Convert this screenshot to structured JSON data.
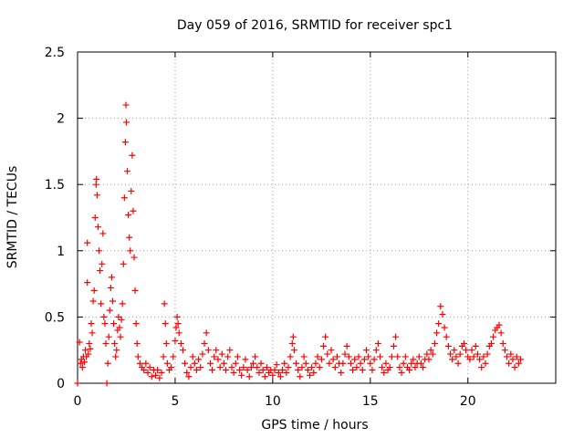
{
  "chart_data": {
    "type": "scatter",
    "title": "Day 059 of 2016, SRMTID for receiver spc1",
    "xlabel": "GPS time / hours",
    "ylabel": "SRMTID / TECUs",
    "xlim": [
      0,
      24.5
    ],
    "ylim": [
      0,
      2.5
    ],
    "x_ticks": [
      0,
      5,
      10,
      15,
      20
    ],
    "x_tick_labels": [
      "0",
      "5",
      "10",
      "15",
      "20"
    ],
    "y_ticks": [
      0,
      0.5,
      1,
      1.5,
      2,
      2.5
    ],
    "y_tick_labels": [
      "0",
      "0.5",
      "1",
      "1.5",
      "2",
      "2.5"
    ],
    "grid": true,
    "marker": "plus",
    "series": [
      {
        "name": "SRMTID",
        "color": "#ff0000",
        "points": [
          [
            0.0,
            0.0
          ],
          [
            0.1,
            0.31
          ],
          [
            0.15,
            0.15
          ],
          [
            0.2,
            0.18
          ],
          [
            0.25,
            0.12
          ],
          [
            0.3,
            0.2
          ],
          [
            0.35,
            0.16
          ],
          [
            0.4,
            0.25
          ],
          [
            0.45,
            0.2
          ],
          [
            0.5,
            0.76
          ],
          [
            0.5,
            1.06
          ],
          [
            0.55,
            0.22
          ],
          [
            0.6,
            0.3
          ],
          [
            0.65,
            0.26
          ],
          [
            0.7,
            0.45
          ],
          [
            0.75,
            0.38
          ],
          [
            0.8,
            0.62
          ],
          [
            0.85,
            0.7
          ],
          [
            0.9,
            1.25
          ],
          [
            0.95,
            1.5
          ],
          [
            0.97,
            1.54
          ],
          [
            1.0,
            1.42
          ],
          [
            1.05,
            1.18
          ],
          [
            1.1,
            1.0
          ],
          [
            1.15,
            0.85
          ],
          [
            1.2,
            0.6
          ],
          [
            1.25,
            0.9
          ],
          [
            1.3,
            1.13
          ],
          [
            1.35,
            0.5
          ],
          [
            1.4,
            0.45
          ],
          [
            1.45,
            0.3
          ],
          [
            1.5,
            0.0
          ],
          [
            1.55,
            0.15
          ],
          [
            1.6,
            0.35
          ],
          [
            1.65,
            0.55
          ],
          [
            1.7,
            0.72
          ],
          [
            1.75,
            0.8
          ],
          [
            1.8,
            0.62
          ],
          [
            1.85,
            0.45
          ],
          [
            1.9,
            0.3
          ],
          [
            1.95,
            0.2
          ],
          [
            2.0,
            0.25
          ],
          [
            2.05,
            0.4
          ],
          [
            2.1,
            0.5
          ],
          [
            2.15,
            0.42
          ],
          [
            2.2,
            0.35
          ],
          [
            2.25,
            0.48
          ],
          [
            2.3,
            0.6
          ],
          [
            2.35,
            0.9
          ],
          [
            2.4,
            1.4
          ],
          [
            2.45,
            1.82
          ],
          [
            2.48,
            2.1
          ],
          [
            2.5,
            1.97
          ],
          [
            2.55,
            1.6
          ],
          [
            2.6,
            1.27
          ],
          [
            2.65,
            1.1
          ],
          [
            2.7,
            1.0
          ],
          [
            2.75,
            1.45
          ],
          [
            2.8,
            1.72
          ],
          [
            2.85,
            1.3
          ],
          [
            2.9,
            0.95
          ],
          [
            2.95,
            0.7
          ],
          [
            3.0,
            0.45
          ],
          [
            3.05,
            0.3
          ],
          [
            3.1,
            0.2
          ],
          [
            3.2,
            0.15
          ],
          [
            3.3,
            0.12
          ],
          [
            3.4,
            0.1
          ],
          [
            3.5,
            0.15
          ],
          [
            3.6,
            0.08
          ],
          [
            3.7,
            0.12
          ],
          [
            3.8,
            0.05
          ],
          [
            3.9,
            0.1
          ],
          [
            4.0,
            0.06
          ],
          [
            4.1,
            0.1
          ],
          [
            4.2,
            0.04
          ],
          [
            4.3,
            0.08
          ],
          [
            4.4,
            0.2
          ],
          [
            4.45,
            0.6
          ],
          [
            4.5,
            0.45
          ],
          [
            4.55,
            0.3
          ],
          [
            4.6,
            0.15
          ],
          [
            4.7,
            0.1
          ],
          [
            4.8,
            0.12
          ],
          [
            4.9,
            0.2
          ],
          [
            5.0,
            0.32
          ],
          [
            5.05,
            0.42
          ],
          [
            5.1,
            0.5
          ],
          [
            5.15,
            0.45
          ],
          [
            5.2,
            0.38
          ],
          [
            5.3,
            0.3
          ],
          [
            5.4,
            0.25
          ],
          [
            5.5,
            0.15
          ],
          [
            5.6,
            0.08
          ],
          [
            5.7,
            0.05
          ],
          [
            5.8,
            0.12
          ],
          [
            5.9,
            0.2
          ],
          [
            6.0,
            0.15
          ],
          [
            6.1,
            0.1
          ],
          [
            6.2,
            0.18
          ],
          [
            6.3,
            0.12
          ],
          [
            6.4,
            0.22
          ],
          [
            6.5,
            0.3
          ],
          [
            6.6,
            0.38
          ],
          [
            6.7,
            0.25
          ],
          [
            6.8,
            0.15
          ],
          [
            6.9,
            0.1
          ],
          [
            7.0,
            0.2
          ],
          [
            7.1,
            0.25
          ],
          [
            7.2,
            0.18
          ],
          [
            7.3,
            0.12
          ],
          [
            7.4,
            0.22
          ],
          [
            7.5,
            0.15
          ],
          [
            7.6,
            0.1
          ],
          [
            7.7,
            0.2
          ],
          [
            7.8,
            0.25
          ],
          [
            7.9,
            0.12
          ],
          [
            8.0,
            0.08
          ],
          [
            8.1,
            0.15
          ],
          [
            8.2,
            0.2
          ],
          [
            8.3,
            0.1
          ],
          [
            8.4,
            0.06
          ],
          [
            8.5,
            0.12
          ],
          [
            8.6,
            0.18
          ],
          [
            8.7,
            0.1
          ],
          [
            8.8,
            0.05
          ],
          [
            8.9,
            0.12
          ],
          [
            9.0,
            0.15
          ],
          [
            9.1,
            0.2
          ],
          [
            9.2,
            0.12
          ],
          [
            9.3,
            0.08
          ],
          [
            9.4,
            0.15
          ],
          [
            9.5,
            0.1
          ],
          [
            9.6,
            0.05
          ],
          [
            9.7,
            0.12
          ],
          [
            9.8,
            0.08
          ],
          [
            9.9,
            0.1
          ],
          [
            10.0,
            0.06
          ],
          [
            10.1,
            0.1
          ],
          [
            10.2,
            0.14
          ],
          [
            10.3,
            0.08
          ],
          [
            10.4,
            0.05
          ],
          [
            10.5,
            0.1
          ],
          [
            10.6,
            0.15
          ],
          [
            10.7,
            0.08
          ],
          [
            10.8,
            0.12
          ],
          [
            10.9,
            0.2
          ],
          [
            11.0,
            0.3
          ],
          [
            11.05,
            0.35
          ],
          [
            11.1,
            0.25
          ],
          [
            11.2,
            0.15
          ],
          [
            11.3,
            0.1
          ],
          [
            11.4,
            0.05
          ],
          [
            11.5,
            0.12
          ],
          [
            11.6,
            0.2
          ],
          [
            11.7,
            0.15
          ],
          [
            11.8,
            0.1
          ],
          [
            11.9,
            0.06
          ],
          [
            12.0,
            0.12
          ],
          [
            12.1,
            0.08
          ],
          [
            12.2,
            0.15
          ],
          [
            12.3,
            0.2
          ],
          [
            12.4,
            0.12
          ],
          [
            12.5,
            0.18
          ],
          [
            12.6,
            0.28
          ],
          [
            12.7,
            0.35
          ],
          [
            12.8,
            0.22
          ],
          [
            12.9,
            0.15
          ],
          [
            13.0,
            0.25
          ],
          [
            13.1,
            0.18
          ],
          [
            13.2,
            0.12
          ],
          [
            13.3,
            0.2
          ],
          [
            13.4,
            0.15
          ],
          [
            13.5,
            0.08
          ],
          [
            13.6,
            0.15
          ],
          [
            13.7,
            0.22
          ],
          [
            13.8,
            0.28
          ],
          [
            13.9,
            0.2
          ],
          [
            14.0,
            0.15
          ],
          [
            14.1,
            0.1
          ],
          [
            14.2,
            0.18
          ],
          [
            14.3,
            0.12
          ],
          [
            14.4,
            0.2
          ],
          [
            14.5,
            0.15
          ],
          [
            14.6,
            0.1
          ],
          [
            14.7,
            0.18
          ],
          [
            14.8,
            0.25
          ],
          [
            14.9,
            0.2
          ],
          [
            15.0,
            0.15
          ],
          [
            15.1,
            0.1
          ],
          [
            15.2,
            0.18
          ],
          [
            15.3,
            0.25
          ],
          [
            15.4,
            0.3
          ],
          [
            15.5,
            0.2
          ],
          [
            15.6,
            0.12
          ],
          [
            15.7,
            0.08
          ],
          [
            15.8,
            0.15
          ],
          [
            15.9,
            0.1
          ],
          [
            16.0,
            0.12
          ],
          [
            16.1,
            0.2
          ],
          [
            16.2,
            0.28
          ],
          [
            16.3,
            0.35
          ],
          [
            16.4,
            0.2
          ],
          [
            16.5,
            0.12
          ],
          [
            16.6,
            0.08
          ],
          [
            16.7,
            0.15
          ],
          [
            16.8,
            0.2
          ],
          [
            16.9,
            0.12
          ],
          [
            17.0,
            0.1
          ],
          [
            17.1,
            0.15
          ],
          [
            17.2,
            0.18
          ],
          [
            17.3,
            0.12
          ],
          [
            17.4,
            0.15
          ],
          [
            17.5,
            0.2
          ],
          [
            17.6,
            0.15
          ],
          [
            17.7,
            0.12
          ],
          [
            17.8,
            0.18
          ],
          [
            17.9,
            0.22
          ],
          [
            18.0,
            0.18
          ],
          [
            18.1,
            0.25
          ],
          [
            18.2,
            0.22
          ],
          [
            18.3,
            0.3
          ],
          [
            18.4,
            0.38
          ],
          [
            18.5,
            0.45
          ],
          [
            18.6,
            0.58
          ],
          [
            18.7,
            0.52
          ],
          [
            18.8,
            0.42
          ],
          [
            18.9,
            0.35
          ],
          [
            19.0,
            0.28
          ],
          [
            19.1,
            0.22
          ],
          [
            19.2,
            0.18
          ],
          [
            19.3,
            0.25
          ],
          [
            19.4,
            0.2
          ],
          [
            19.5,
            0.15
          ],
          [
            19.6,
            0.22
          ],
          [
            19.7,
            0.28
          ],
          [
            19.8,
            0.3
          ],
          [
            19.9,
            0.25
          ],
          [
            20.0,
            0.2
          ],
          [
            20.1,
            0.18
          ],
          [
            20.2,
            0.25
          ],
          [
            20.3,
            0.2
          ],
          [
            20.4,
            0.28
          ],
          [
            20.5,
            0.22
          ],
          [
            20.6,
            0.18
          ],
          [
            20.7,
            0.12
          ],
          [
            20.8,
            0.2
          ],
          [
            20.9,
            0.15
          ],
          [
            21.0,
            0.22
          ],
          [
            21.1,
            0.28
          ],
          [
            21.2,
            0.3
          ],
          [
            21.3,
            0.35
          ],
          [
            21.4,
            0.4
          ],
          [
            21.5,
            0.42
          ],
          [
            21.6,
            0.44
          ],
          [
            21.7,
            0.38
          ],
          [
            21.8,
            0.3
          ],
          [
            21.9,
            0.25
          ],
          [
            22.0,
            0.2
          ],
          [
            22.1,
            0.15
          ],
          [
            22.2,
            0.22
          ],
          [
            22.3,
            0.18
          ],
          [
            22.4,
            0.12
          ],
          [
            22.5,
            0.2
          ],
          [
            22.6,
            0.15
          ],
          [
            22.7,
            0.18
          ]
        ]
      }
    ]
  }
}
